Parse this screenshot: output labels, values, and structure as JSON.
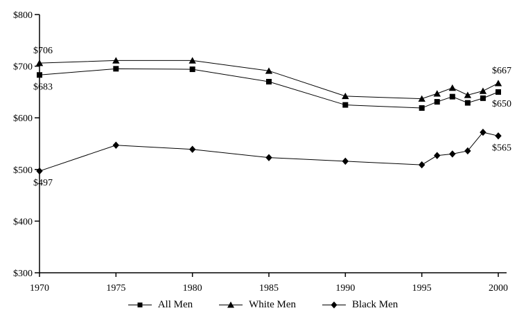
{
  "chart_data": {
    "type": "line",
    "title": "",
    "xlabel": "",
    "ylabel": "",
    "x": [
      1970,
      1975,
      1980,
      1985,
      1990,
      1995,
      1996,
      1997,
      1998,
      1999,
      2000
    ],
    "xlim": [
      1970,
      2000
    ],
    "ylim": [
      300,
      800
    ],
    "grid": false,
    "background": "#ffffff",
    "line_color": "#000000",
    "yticks": [
      {
        "value": 300,
        "label": "$300"
      },
      {
        "value": 400,
        "label": "$400"
      },
      {
        "value": 500,
        "label": "$500"
      },
      {
        "value": 600,
        "label": "$600"
      },
      {
        "value": 700,
        "label": "$700"
      },
      {
        "value": 800,
        "label": "$800"
      }
    ],
    "xticks": [
      {
        "value": 1970,
        "label": "1970"
      },
      {
        "value": 1975,
        "label": "1975"
      },
      {
        "value": 1980,
        "label": "1980"
      },
      {
        "value": 1985,
        "label": "1985"
      },
      {
        "value": 1990,
        "label": "1990"
      },
      {
        "value": 1995,
        "label": "1995"
      },
      {
        "value": 2000,
        "label": "2000"
      }
    ],
    "series": [
      {
        "name": "All Men",
        "marker": "square",
        "values": [
          683,
          695,
          694,
          670,
          625,
          619,
          631,
          641,
          629,
          638,
          650
        ]
      },
      {
        "name": "White Men",
        "marker": "triangle",
        "values": [
          706,
          711,
          711,
          691,
          642,
          637,
          647,
          658,
          644,
          652,
          667
        ]
      },
      {
        "name": "Black Men",
        "marker": "diamond",
        "values": [
          497,
          547,
          539,
          523,
          516,
          509,
          527,
          530,
          536,
          572,
          565
        ]
      }
    ],
    "annotations": [
      {
        "text": "$706",
        "year": 1970,
        "value": 706,
        "placement": "above"
      },
      {
        "text": "$683",
        "year": 1970,
        "value": 683,
        "placement": "below"
      },
      {
        "text": "$497",
        "year": 1970,
        "value": 497,
        "placement": "below"
      },
      {
        "text": "$667",
        "year": 2000,
        "value": 667,
        "placement": "above"
      },
      {
        "text": "$650",
        "year": 2000,
        "value": 650,
        "placement": "below"
      },
      {
        "text": "$565",
        "year": 2000,
        "value": 565,
        "placement": "below"
      }
    ],
    "legend": {
      "position": "bottom",
      "items": [
        "All Men",
        "White Men",
        "Black Men"
      ]
    }
  }
}
